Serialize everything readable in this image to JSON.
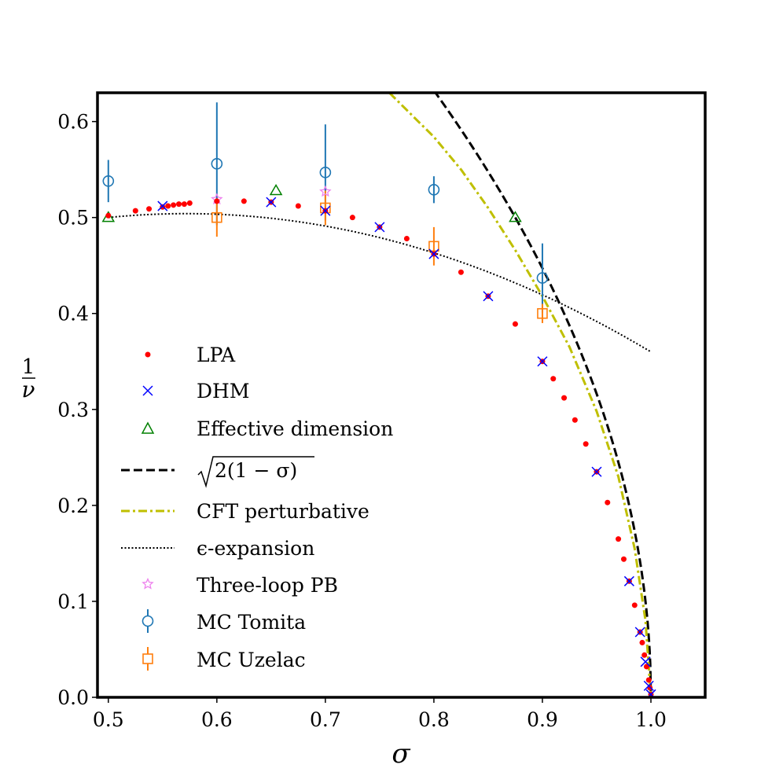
{
  "chart_data": {
    "type": "scatter",
    "title": "",
    "xlabel": "σ",
    "ylabel_numerator": "1",
    "ylabel_denominator": "ν",
    "xlim": [
      0.49,
      1.05
    ],
    "ylim": [
      0.0,
      0.63
    ],
    "xticks": [
      0.5,
      0.6,
      0.7,
      0.8,
      0.9,
      1.0
    ],
    "xtick_labels": [
      "0.5",
      "0.6",
      "0.7",
      "0.8",
      "0.9",
      "1.0"
    ],
    "yticks": [
      0.0,
      0.1,
      0.2,
      0.3,
      0.4,
      0.5,
      0.6
    ],
    "ytick_labels": [
      "0.0",
      "0.1",
      "0.2",
      "0.3",
      "0.4",
      "0.5",
      "0.6"
    ],
    "grid": false,
    "legend_position": "lower-left",
    "series": [
      {
        "name": "LPA",
        "marker": "dot",
        "color": "#ff0000",
        "x": [
          0.5,
          0.525,
          0.5375,
          0.55,
          0.555,
          0.56,
          0.565,
          0.57,
          0.575,
          0.6,
          0.625,
          0.65,
          0.675,
          0.7,
          0.725,
          0.75,
          0.775,
          0.8,
          0.825,
          0.85,
          0.875,
          0.9,
          0.91,
          0.92,
          0.93,
          0.94,
          0.95,
          0.96,
          0.97,
          0.975,
          0.98,
          0.985,
          0.99,
          0.992,
          0.994,
          0.996,
          0.998,
          0.999,
          1.0
        ],
        "y": [
          0.502,
          0.507,
          0.509,
          0.511,
          0.512,
          0.513,
          0.514,
          0.514,
          0.515,
          0.517,
          0.517,
          0.516,
          0.512,
          0.507,
          0.5,
          0.49,
          0.478,
          0.462,
          0.443,
          0.418,
          0.389,
          0.35,
          0.332,
          0.312,
          0.289,
          0.264,
          0.235,
          0.203,
          0.165,
          0.144,
          0.121,
          0.096,
          0.068,
          0.057,
          0.044,
          0.032,
          0.018,
          0.01,
          0.003
        ]
      },
      {
        "name": "DHM",
        "marker": "x",
        "color": "#0000ff",
        "x": [
          0.55,
          0.65,
          0.7,
          0.75,
          0.8,
          0.85,
          0.9,
          0.95,
          0.98,
          0.99,
          0.995,
          0.998,
          1.0
        ],
        "y": [
          0.512,
          0.516,
          0.507,
          0.49,
          0.462,
          0.418,
          0.35,
          0.235,
          0.121,
          0.068,
          0.037,
          0.012,
          0.003
        ]
      },
      {
        "name": "Effective dimension",
        "marker": "triangle",
        "color": "#008000",
        "x": [
          0.5,
          0.6545,
          0.875
        ],
        "y": [
          0.5,
          0.528,
          0.5
        ]
      },
      {
        "name": "√2(1 − σ)",
        "line": "dashed",
        "color": "#000000",
        "formula": "sqrt(2*(1-sigma))",
        "x_range": [
          0.8,
          1.0
        ]
      },
      {
        "name": "CFT perturbative",
        "line": "dashdot",
        "color": "#bfbf00",
        "x": [
          0.759,
          0.775,
          0.8,
          0.825,
          0.85,
          0.875,
          0.9,
          0.925,
          0.95,
          0.97,
          0.985,
          0.995,
          1.0
        ],
        "y": [
          0.63,
          0.612,
          0.584,
          0.55,
          0.51,
          0.466,
          0.418,
          0.365,
          0.298,
          0.23,
          0.155,
          0.08,
          0.0
        ]
      },
      {
        "name": "ϵ-expansion",
        "line": "dotted",
        "color": "#000000",
        "formula": "1/nu = 1/2 + (2sigma - 1)/2 - c(2sigma - 1)^2",
        "x_range": [
          0.5,
          1.0
        ]
      },
      {
        "name": "Three-loop PB",
        "marker": "star",
        "color": "#ee82ee",
        "x": [
          0.6,
          0.7
        ],
        "y": [
          0.519,
          0.527
        ]
      },
      {
        "name": "MC Tomita",
        "marker": "circle-errorbar",
        "color": "#1f77b4",
        "x": [
          0.5,
          0.6,
          0.7,
          0.8,
          0.9
        ],
        "y": [
          0.538,
          0.556,
          0.547,
          0.529,
          0.437
        ],
        "yerr": [
          0.022,
          0.064,
          0.05,
          0.014,
          0.036
        ]
      },
      {
        "name": "MC Uzelac",
        "marker": "square-errorbar",
        "color": "#ff7f0e",
        "x": [
          0.6,
          0.7,
          0.8,
          0.9
        ],
        "y": [
          0.5,
          0.51,
          0.47,
          0.4
        ],
        "yerr": [
          0.02,
          0.018,
          0.02,
          0.01
        ]
      }
    ],
    "legend": [
      "LPA",
      "DHM",
      "Effective dimension",
      "2(1 − σ)",
      "CFT perturbative",
      "ϵ-expansion",
      "Three-loop PB",
      "MC Tomita",
      "MC Uzelac"
    ]
  }
}
